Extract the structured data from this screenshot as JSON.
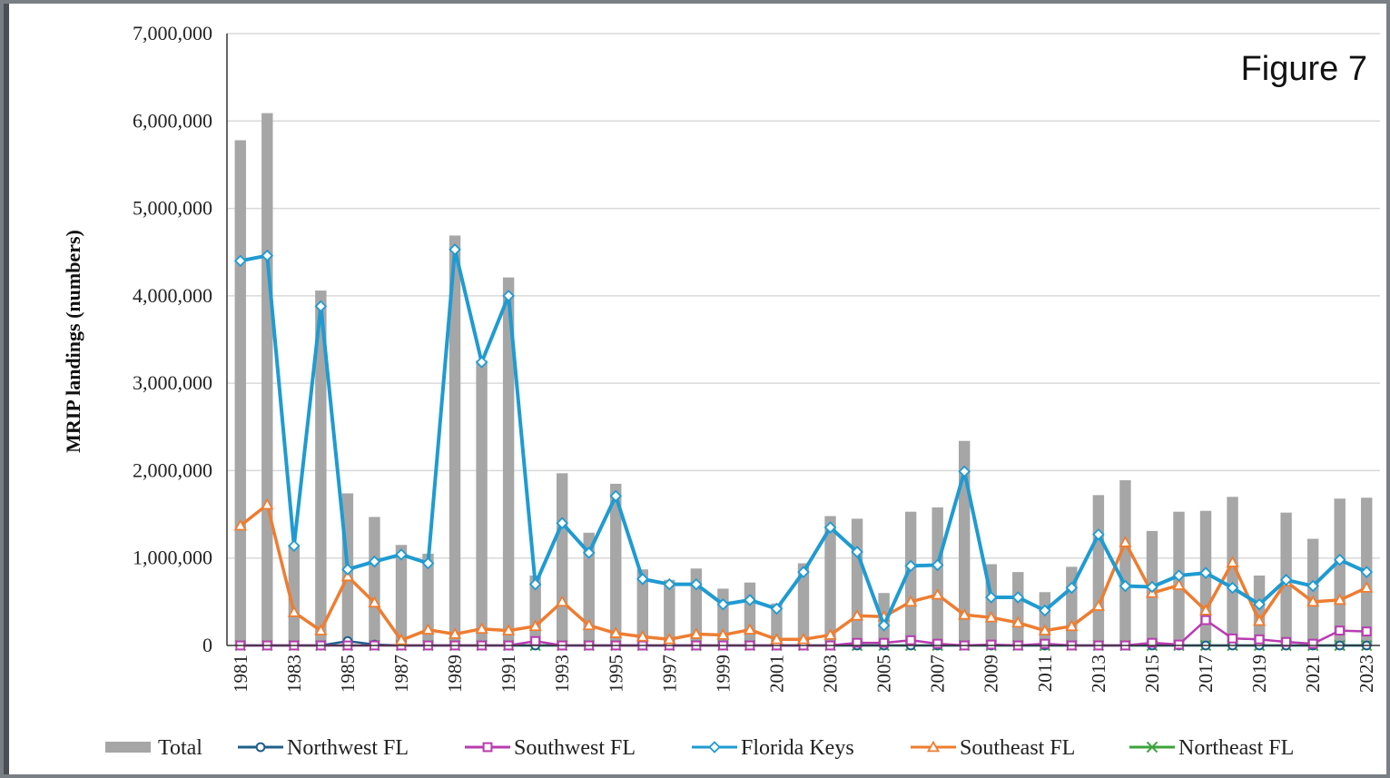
{
  "figure_label": "Figure 7",
  "chart_data": {
    "type": "bar+line",
    "title": "",
    "xlabel": "",
    "ylabel": "MRIP landings (numbers)",
    "ylim": [
      0,
      7000000
    ],
    "yticks": [
      0,
      1000000,
      2000000,
      3000000,
      4000000,
      5000000,
      6000000,
      7000000
    ],
    "ytick_labels": [
      "0",
      "1,000,000",
      "2,000,000",
      "3,000,000",
      "4,000,000",
      "5,000,000",
      "6,000,000",
      "7,000,000"
    ],
    "grid": true,
    "legend_position": "bottom",
    "years": [
      1981,
      1982,
      1983,
      1984,
      1985,
      1986,
      1987,
      1988,
      1989,
      1990,
      1991,
      1992,
      1993,
      1994,
      1995,
      1996,
      1997,
      1998,
      1999,
      2000,
      2001,
      2002,
      2003,
      2004,
      2005,
      2006,
      2007,
      2008,
      2009,
      2010,
      2011,
      2012,
      2013,
      2014,
      2015,
      2016,
      2017,
      2018,
      2019,
      2020,
      2021,
      2022,
      2023
    ],
    "xtick_labels": [
      "1981",
      "1983",
      "1985",
      "1987",
      "1989",
      "1991",
      "1993",
      "1995",
      "1997",
      "1999",
      "2001",
      "2003",
      "2005",
      "2007",
      "2009",
      "2011",
      "2013",
      "2015",
      "2017",
      "2019",
      "2021",
      "2023"
    ],
    "bar_series": {
      "name": "Total",
      "color": "#a6a6a6",
      "values": [
        5780000,
        6090000,
        1150000,
        4060000,
        1740000,
        1470000,
        1150000,
        1050000,
        4690000,
        3260000,
        4210000,
        800000,
        1970000,
        1290000,
        1850000,
        870000,
        750000,
        880000,
        650000,
        720000,
        480000,
        940000,
        1480000,
        1450000,
        600000,
        1530000,
        1580000,
        2340000,
        930000,
        840000,
        610000,
        900000,
        1720000,
        1890000,
        1310000,
        1530000,
        1540000,
        1700000,
        800000,
        1520000,
        1220000,
        1680000,
        1690000
      ]
    },
    "series": [
      {
        "name": "Northwest FL",
        "color": "#1f5f8b",
        "marker": "circle",
        "values": [
          0,
          0,
          0,
          0,
          50000,
          10000,
          0,
          0,
          0,
          0,
          0,
          0,
          0,
          0,
          0,
          0,
          0,
          0,
          0,
          0,
          0,
          0,
          0,
          0,
          0,
          0,
          0,
          0,
          0,
          0,
          0,
          0,
          0,
          0,
          0,
          0,
          0,
          0,
          0,
          0,
          0,
          0,
          0
        ]
      },
      {
        "name": "Southwest FL",
        "color": "#b83cb0",
        "marker": "square",
        "values": [
          0,
          0,
          0,
          0,
          0,
          0,
          0,
          0,
          0,
          0,
          0,
          50000,
          0,
          0,
          0,
          0,
          0,
          0,
          0,
          0,
          0,
          0,
          0,
          30000,
          30000,
          60000,
          20000,
          0,
          10000,
          0,
          20000,
          0,
          0,
          0,
          30000,
          10000,
          290000,
          80000,
          70000,
          40000,
          20000,
          170000,
          160000
        ]
      },
      {
        "name": "Florida Keys",
        "color": "#1f9bd1",
        "marker": "diamond",
        "values": [
          4400000,
          4460000,
          1140000,
          3880000,
          870000,
          960000,
          1040000,
          940000,
          4530000,
          3240000,
          4000000,
          700000,
          1400000,
          1060000,
          1710000,
          760000,
          700000,
          700000,
          470000,
          520000,
          420000,
          840000,
          1350000,
          1070000,
          230000,
          910000,
          920000,
          1990000,
          550000,
          550000,
          400000,
          660000,
          1270000,
          680000,
          670000,
          800000,
          830000,
          660000,
          470000,
          750000,
          680000,
          980000,
          840000
        ]
      },
      {
        "name": "Southeast FL",
        "color": "#ee7d31",
        "marker": "triangle",
        "values": [
          1370000,
          1610000,
          380000,
          170000,
          790000,
          490000,
          60000,
          180000,
          130000,
          190000,
          170000,
          220000,
          500000,
          230000,
          140000,
          100000,
          70000,
          130000,
          120000,
          180000,
          70000,
          70000,
          120000,
          340000,
          330000,
          500000,
          580000,
          350000,
          320000,
          260000,
          170000,
          220000,
          450000,
          1180000,
          600000,
          690000,
          400000,
          950000,
          280000,
          730000,
          500000,
          520000,
          660000
        ]
      },
      {
        "name": "Northeast FL",
        "color": "#3ca33c",
        "marker": "x",
        "values": [
          0,
          0,
          0,
          0,
          0,
          0,
          0,
          0,
          0,
          0,
          0,
          0,
          0,
          0,
          0,
          0,
          0,
          0,
          0,
          0,
          0,
          0,
          0,
          0,
          0,
          0,
          0,
          0,
          0,
          0,
          0,
          0,
          0,
          0,
          0,
          0,
          0,
          0,
          0,
          0,
          0,
          0,
          0
        ]
      }
    ]
  }
}
